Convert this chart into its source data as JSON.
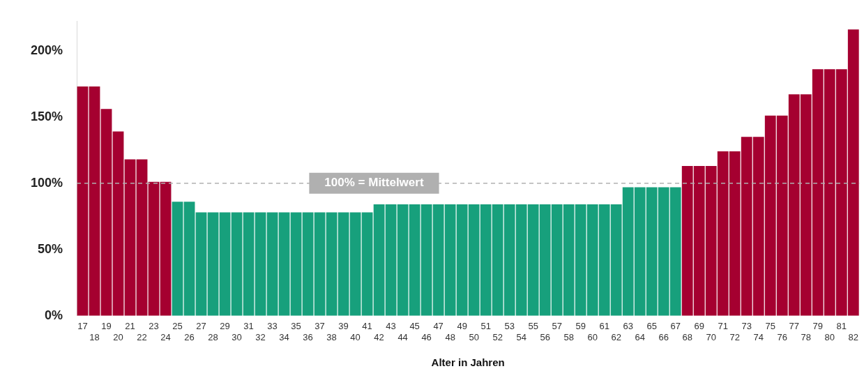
{
  "chart_data": {
    "type": "bar",
    "xlabel": "Alter in Jahren",
    "categories": [
      "17",
      "18",
      "19",
      "20",
      "21",
      "22",
      "23",
      "24",
      "25",
      "26",
      "27",
      "28",
      "29",
      "30",
      "31",
      "32",
      "33",
      "34",
      "35",
      "36",
      "37",
      "38",
      "39",
      "40",
      "41",
      "42",
      "43",
      "44",
      "45",
      "46",
      "47",
      "48",
      "49",
      "50",
      "51",
      "52",
      "53",
      "54",
      "55",
      "56",
      "57",
      "58",
      "59",
      "60",
      "61",
      "62",
      "63",
      "64",
      "65",
      "66",
      "67",
      "68",
      "69",
      "70",
      "71",
      "72",
      "73",
      "74",
      "75",
      "76",
      "77",
      "78",
      "79",
      "80",
      "81",
      "82"
    ],
    "values": [
      173,
      173,
      156,
      139,
      118,
      118,
      101,
      101,
      86,
      86,
      78,
      78,
      78,
      78,
      78,
      78,
      78,
      78,
      78,
      78,
      78,
      78,
      78,
      78,
      78,
      84,
      84,
      84,
      84,
      84,
      84,
      84,
      84,
      84,
      84,
      84,
      84,
      84,
      84,
      84,
      84,
      84,
      84,
      84,
      84,
      84,
      97,
      97,
      97,
      97,
      97,
      113,
      113,
      113,
      124,
      124,
      135,
      135,
      151,
      151,
      167,
      167,
      186,
      186,
      186,
      216
    ],
    "colors": [
      "#a50030",
      "#a50030",
      "#a50030",
      "#a50030",
      "#a50030",
      "#a50030",
      "#a50030",
      "#a50030",
      "#17a07c",
      "#17a07c",
      "#17a07c",
      "#17a07c",
      "#17a07c",
      "#17a07c",
      "#17a07c",
      "#17a07c",
      "#17a07c",
      "#17a07c",
      "#17a07c",
      "#17a07c",
      "#17a07c",
      "#17a07c",
      "#17a07c",
      "#17a07c",
      "#17a07c",
      "#17a07c",
      "#17a07c",
      "#17a07c",
      "#17a07c",
      "#17a07c",
      "#17a07c",
      "#17a07c",
      "#17a07c",
      "#17a07c",
      "#17a07c",
      "#17a07c",
      "#17a07c",
      "#17a07c",
      "#17a07c",
      "#17a07c",
      "#17a07c",
      "#17a07c",
      "#17a07c",
      "#17a07c",
      "#17a07c",
      "#17a07c",
      "#17a07c",
      "#17a07c",
      "#17a07c",
      "#17a07c",
      "#17a07c",
      "#a50030",
      "#a50030",
      "#a50030",
      "#a50030",
      "#a50030",
      "#a50030",
      "#a50030",
      "#a50030",
      "#a50030",
      "#a50030",
      "#a50030",
      "#a50030",
      "#a50030",
      "#a50030",
      "#a50030"
    ],
    "ylim": [
      0,
      222
    ],
    "yticks": [
      {
        "value": 0,
        "label": "0%"
      },
      {
        "value": 50,
        "label": "50%"
      },
      {
        "value": 100,
        "label": "100%"
      },
      {
        "value": 150,
        "label": "150%"
      },
      {
        "value": 200,
        "label": "200%"
      }
    ],
    "ref_lines": [
      {
        "axis": "y",
        "value": 100,
        "label": "100% = Mittelwert",
        "color": "#b0b0b0",
        "line_style": "dashed"
      }
    ],
    "grid": false,
    "legend": false
  }
}
